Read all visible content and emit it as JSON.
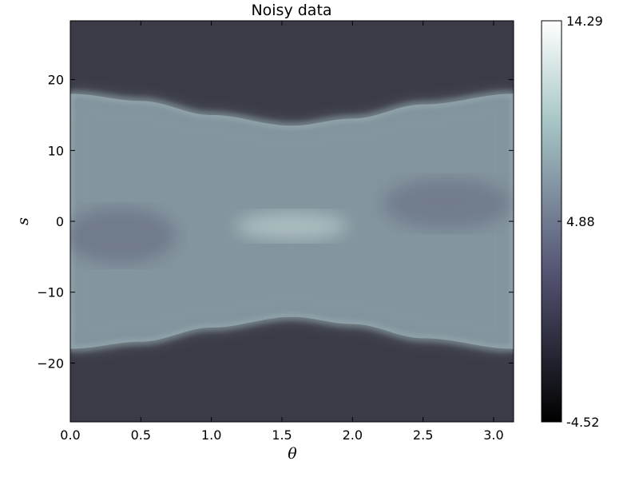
{
  "chart_data": {
    "type": "heatmap",
    "title": "Noisy data",
    "xlabel": "θ",
    "ylabel": "s",
    "xlim": [
      0.0,
      3.14159
    ],
    "ylim": [
      -28.3,
      28.3
    ],
    "x_ticks": [
      "0.0",
      "0.5",
      "1.0",
      "1.5",
      "2.0",
      "2.5",
      "3.0"
    ],
    "y_ticks": [
      "20",
      "10",
      "0",
      "−10",
      "−20"
    ],
    "x_tick_values": [
      0.0,
      0.5,
      1.0,
      1.5,
      2.0,
      2.5,
      3.0
    ],
    "y_tick_values": [
      20,
      10,
      0,
      -10,
      -20
    ],
    "colorbar": {
      "min": -4.52,
      "mid": 4.88,
      "max": 14.29,
      "tick_labels": [
        "14.29",
        "4.88",
        "-4.52"
      ],
      "colormap": "bone"
    },
    "description_of_field": "sinogram: bright band with half-width ~18 at θ=0 and θ=π, narrowing to ~13.5 near θ=π/2",
    "band_halfwidth": [
      {
        "theta": 0.0,
        "s": 18.0
      },
      {
        "theta": 0.5,
        "s": 17.0
      },
      {
        "theta": 1.0,
        "s": 15.0
      },
      {
        "theta": 1.5708,
        "s": 13.5
      },
      {
        "theta": 2.0,
        "s": 14.5
      },
      {
        "theta": 2.5,
        "s": 16.5
      },
      {
        "theta": 3.14159,
        "s": 18.0
      }
    ],
    "grid": false,
    "legend": "none"
  }
}
